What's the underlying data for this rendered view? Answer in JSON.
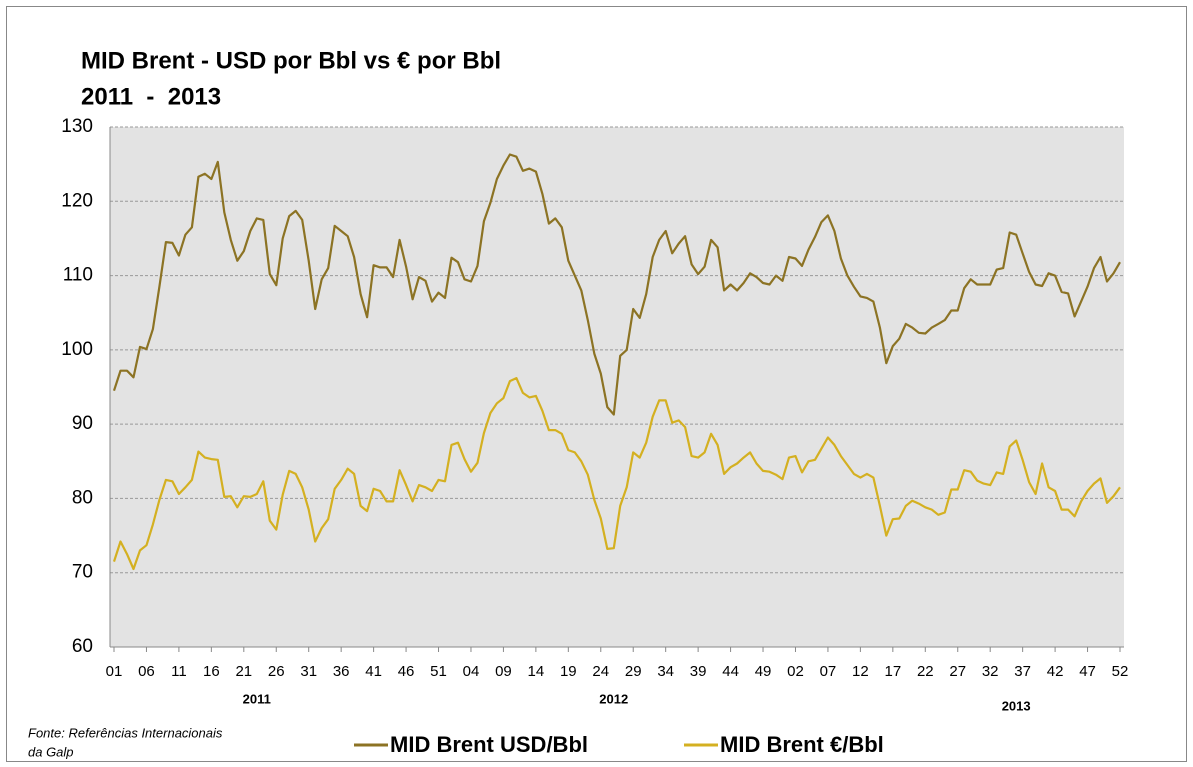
{
  "chart_data": {
    "type": "line",
    "title": "MID Brent - USD por Bbl vs € por Bbl",
    "subtitle": "2011  -  2013",
    "categories": [
      "01",
      null,
      null,
      null,
      null,
      "06",
      null,
      null,
      null,
      null,
      "11",
      null,
      null,
      null,
      null,
      "16",
      null,
      null,
      null,
      null,
      "21",
      null,
      null,
      null,
      null,
      "26",
      null,
      null,
      null,
      null,
      "31",
      null,
      null,
      null,
      null,
      "36",
      null,
      null,
      null,
      null,
      "41",
      null,
      null,
      null,
      null,
      "46",
      null,
      null,
      null,
      null,
      "51",
      null,
      null,
      null,
      null,
      "04",
      null,
      null,
      null,
      null,
      "09",
      null,
      null,
      null,
      null,
      "14",
      null,
      null,
      null,
      null,
      "19",
      null,
      null,
      null,
      null,
      "24",
      null,
      null,
      null,
      null,
      "29",
      null,
      null,
      null,
      null,
      "34",
      null,
      null,
      null,
      null,
      "39",
      null,
      null,
      null,
      null,
      "44",
      null,
      null,
      null,
      null,
      "49",
      null,
      null,
      null,
      null,
      "02",
      null,
      null,
      null,
      null,
      "07",
      null,
      null,
      null,
      null,
      "12",
      null,
      null,
      null,
      null,
      "17",
      null,
      null,
      null,
      null,
      "22",
      null,
      null,
      null,
      null,
      "27",
      null,
      null,
      null,
      null,
      "32",
      null,
      null,
      null,
      null,
      "37",
      null,
      null,
      null,
      null,
      "42",
      null,
      null,
      null,
      null,
      "47",
      null,
      null,
      null,
      null,
      "52"
    ],
    "year_labels": [
      "2011",
      "2012",
      "2013"
    ],
    "series": [
      {
        "name": "MID Brent USD/Bbl",
        "color": "#8c7324",
        "values": [
          94.5,
          97.2,
          97.2,
          96.3,
          100.4,
          100.1,
          102.8,
          108.5,
          114.5,
          114.4,
          112.7,
          115.5,
          116.5,
          123.3,
          123.7,
          123.0,
          125.3,
          118.5,
          114.8,
          112.0,
          113.3,
          116.0,
          117.7,
          117.5,
          110.2,
          108.7,
          115.0,
          118.0,
          118.7,
          117.5,
          112.0,
          105.5,
          109.5,
          111.0,
          116.7,
          116.0,
          115.3,
          112.5,
          107.5,
          104.4,
          111.4,
          111.1,
          111.1,
          109.8,
          114.8,
          111.2,
          106.8,
          109.8,
          109.3,
          106.5,
          107.7,
          107.0,
          112.4,
          111.8,
          109.5,
          109.2,
          111.3,
          117.3,
          119.8,
          123.0,
          124.8,
          126.3,
          126.0,
          124.1,
          124.4,
          124.0,
          121.0,
          117.0,
          117.7,
          116.5,
          112.0,
          110.0,
          108.0,
          104.0,
          99.5,
          96.8,
          92.3,
          91.3,
          99.2,
          100.0,
          105.5,
          104.3,
          107.5,
          112.5,
          114.8,
          116.0,
          113.0,
          114.3,
          115.3,
          111.5,
          110.2,
          111.2,
          114.8,
          113.8,
          108.0,
          108.8,
          108.0,
          109.0,
          110.3,
          109.8,
          109.0,
          108.8,
          110.0,
          109.3,
          112.5,
          112.3,
          111.3,
          113.5,
          115.2,
          117.2,
          118.1,
          116.0,
          112.3,
          110.0,
          108.5,
          107.2,
          107.0,
          106.5,
          103.0,
          98.2,
          100.5,
          101.5,
          103.5,
          103.0,
          102.3,
          102.2,
          103.0,
          103.5,
          104.0,
          105.3,
          105.3,
          108.3,
          109.5,
          108.8,
          108.8,
          108.8,
          110.8,
          111.0,
          115.8,
          115.5,
          113.0,
          110.5,
          108.8,
          108.6,
          110.3,
          110.0,
          107.8,
          107.6,
          104.5,
          106.5,
          108.5,
          111.0,
          112.5,
          109.2,
          110.3,
          111.8
        ]
      },
      {
        "name": "MID Brent €/Bbl",
        "color": "#d4b021",
        "values": [
          71.5,
          74.2,
          72.5,
          70.5,
          73,
          73.7,
          76.5,
          79.8,
          82.5,
          82.3,
          80.6,
          81.5,
          82.5,
          86.3,
          85.5,
          85.3,
          85.2,
          80.2,
          80.3,
          78.8,
          80.3,
          80.2,
          80.6,
          82.3,
          77,
          75.8,
          80.5,
          83.7,
          83.3,
          81.5,
          78.5,
          74.2,
          76,
          77.2,
          81.3,
          82.5,
          84,
          83.3,
          79,
          78.3,
          81.3,
          81,
          79.6,
          79.6,
          83.8,
          81.8,
          79.6,
          81.8,
          81.5,
          81,
          82.5,
          82.3,
          87.2,
          87.5,
          85.3,
          83.6,
          84.8,
          88.8,
          91.5,
          92.8,
          93.5,
          95.8,
          96.2,
          94.2,
          93.6,
          93.8,
          91.8,
          89.2,
          89.2,
          88.7,
          86.5,
          86.2,
          85,
          83.2,
          79.8,
          77.3,
          73.2,
          73.3,
          79,
          81.5,
          86.2,
          85.5,
          87.5,
          91,
          93.2,
          93.2,
          90.2,
          90.5,
          89.6,
          85.7,
          85.5,
          86.2,
          88.7,
          87.2,
          83.3,
          84.2,
          84.7,
          85.5,
          86.2,
          84.7,
          83.7,
          83.6,
          83.2,
          82.6,
          85.5,
          85.7,
          83.5,
          85,
          85.2,
          86.7,
          88.2,
          87.2,
          85.7,
          84.5,
          83.3,
          82.8,
          83.3,
          82.8,
          79,
          75,
          77.2,
          77.3,
          79,
          79.7,
          79.3,
          78.8,
          78.5,
          77.8,
          78.1,
          81.2,
          81.2,
          83.8,
          83.6,
          82.4,
          82,
          81.8,
          83.5,
          83.3,
          87,
          87.8,
          85.2,
          82.2,
          80.6,
          84.7,
          81.5,
          81,
          78.5,
          78.5,
          77.6,
          79.6,
          81,
          82,
          82.7,
          79.4,
          80.3,
          81.5
        ]
      }
    ],
    "ylim": [
      60,
      130
    ],
    "yticks": [
      60,
      70,
      80,
      90,
      100,
      110,
      120,
      130
    ],
    "grid": true,
    "legend": "bottom",
    "source": [
      "Fonte: Referências Internacionais",
      "da Galp"
    ]
  }
}
